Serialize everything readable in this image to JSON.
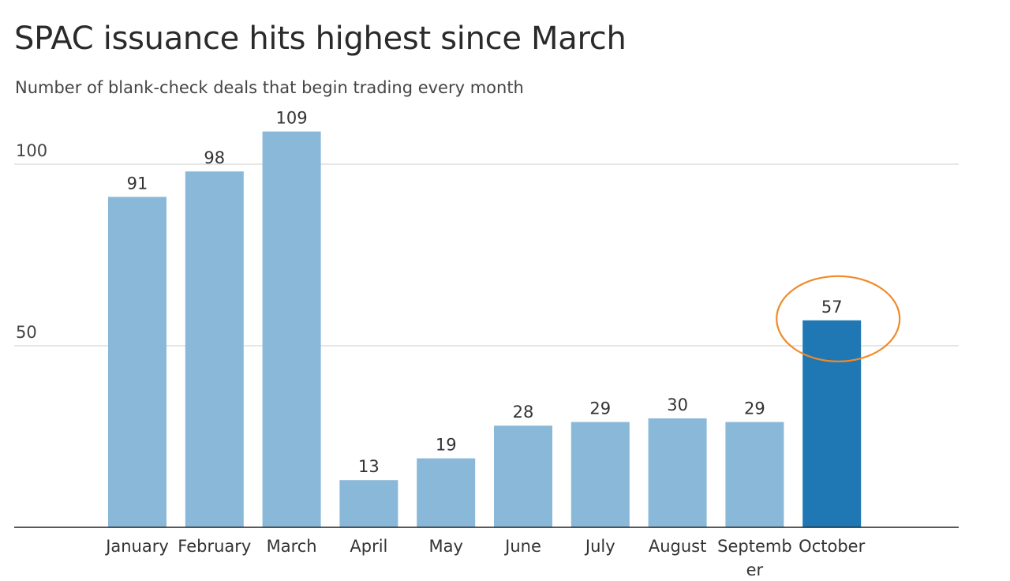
{
  "chart_data": {
    "type": "bar",
    "title": "SPAC issuance hits highest since March",
    "subtitle": "Number of blank-check deals that begin trading every month",
    "categories": [
      "January",
      "February",
      "March",
      "April",
      "May",
      "June",
      "July",
      "August",
      "September",
      "October"
    ],
    "category_display": [
      [
        "January"
      ],
      [
        "February"
      ],
      [
        "March"
      ],
      [
        "April"
      ],
      [
        "May"
      ],
      [
        "June"
      ],
      [
        "July"
      ],
      [
        "August"
      ],
      [
        "Septemb",
        "er"
      ],
      [
        "October"
      ]
    ],
    "values": [
      91,
      98,
      109,
      13,
      19,
      28,
      29,
      30,
      29,
      57
    ],
    "ylim": [
      0,
      109
    ],
    "yticks": [
      50,
      100
    ],
    "grid": true,
    "highlight_index": 9,
    "highlight_annotation": "circle",
    "colors": {
      "bar": "#8ab8d9",
      "highlight": "#1f77b4",
      "annotation": "#f08a2a",
      "grid": "#d6d6d6",
      "axis": "#222222"
    }
  }
}
